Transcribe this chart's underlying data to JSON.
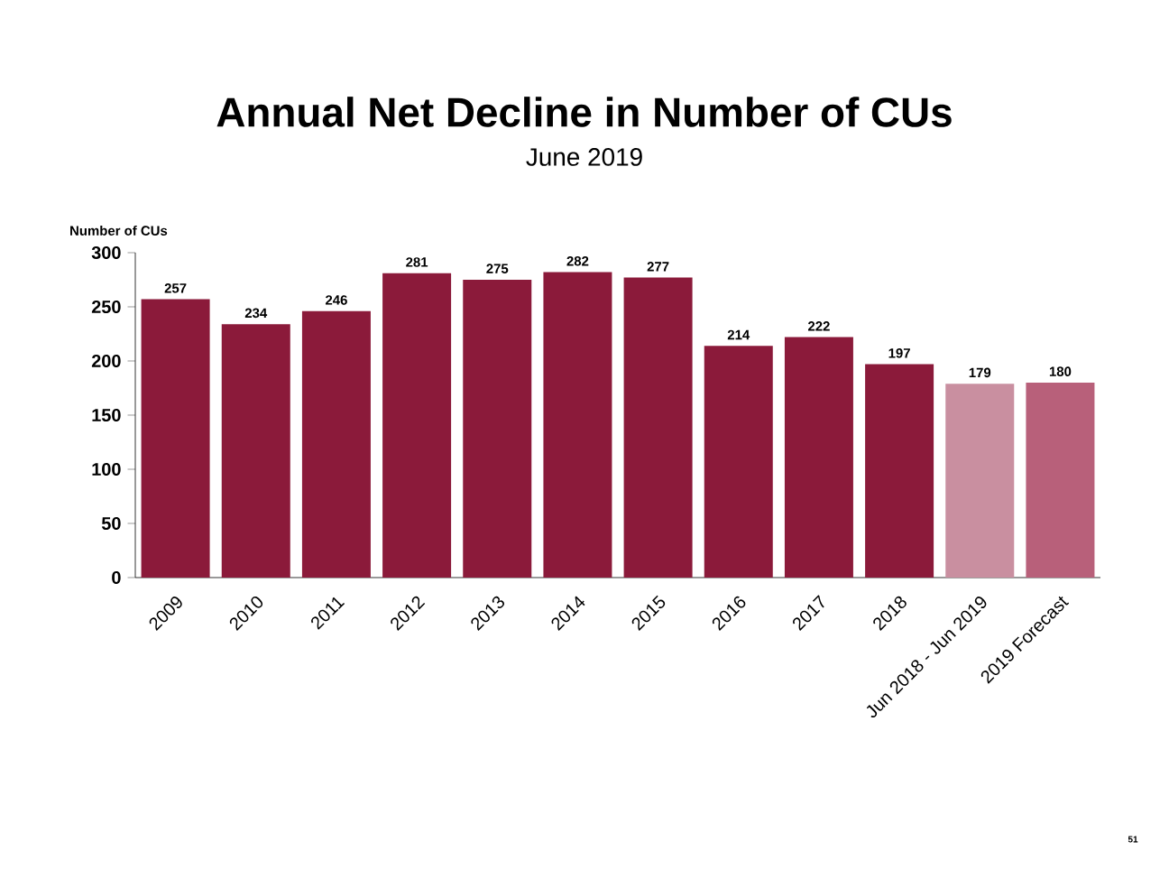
{
  "chart_data": {
    "type": "bar",
    "title": "Annual Net Decline in Number of CUs",
    "subtitle": "June 2019",
    "ylabel": "Number of CUs",
    "categories": [
      "2009",
      "2010",
      "2011",
      "2012",
      "2013",
      "2014",
      "2015",
      "2016",
      "2017",
      "2018",
      "Jun 2018 - Jun 2019",
      "2019 Forecast"
    ],
    "values": [
      257,
      234,
      246,
      281,
      275,
      282,
      277,
      214,
      222,
      197,
      179,
      180
    ],
    "colors": [
      "#8b1a3a",
      "#8b1a3a",
      "#8b1a3a",
      "#8b1a3a",
      "#8b1a3a",
      "#8b1a3a",
      "#8b1a3a",
      "#8b1a3a",
      "#8b1a3a",
      "#8b1a3a",
      "#c98fa0",
      "#b8607a"
    ],
    "ylim": [
      0,
      300
    ],
    "yticks": [
      0,
      50,
      100,
      150,
      200,
      250,
      300
    ],
    "grid": false,
    "data_labels": true,
    "annotations": [
      "51"
    ]
  }
}
